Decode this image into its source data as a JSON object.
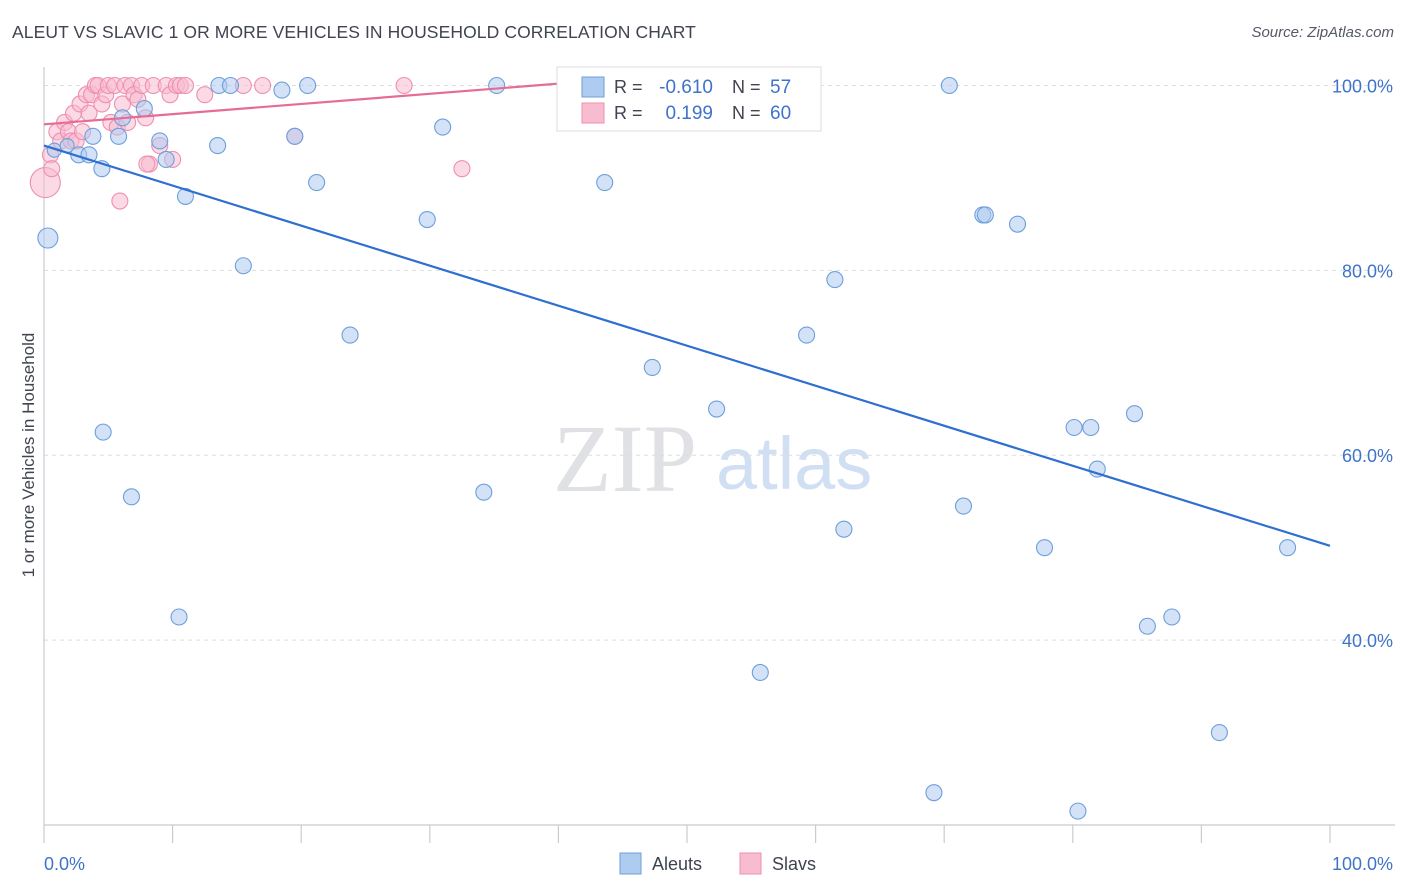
{
  "title": "ALEUT VS SLAVIC 1 OR MORE VEHICLES IN HOUSEHOLD CORRELATION CHART",
  "source": "Source: ZipAtlas.com",
  "watermark": {
    "zip": "ZIP",
    "atlas": "atlas"
  },
  "colors": {
    "aleut_fill": "#aecbf0",
    "aleut_stroke": "#6d9fdc",
    "aleut_line": "#2f6fd0",
    "slav_fill": "#f8bcd0",
    "slav_stroke": "#ee8fae",
    "slav_line": "#e56d95",
    "value_text": "#3f73c9",
    "grid": "#dcdde2",
    "label_text": "#3f4450"
  },
  "legend_box": {
    "rows": [
      {
        "r_label": "R =",
        "r_value": "-0.610",
        "n_label": "N =",
        "n_value": "57"
      },
      {
        "r_label": "R =",
        "r_value": "0.199",
        "n_label": "N =",
        "n_value": "60"
      }
    ]
  },
  "bottom_legend": [
    "Aleuts",
    "Slavs"
  ],
  "chart_data": {
    "type": "scatter",
    "title": "ALEUT VS SLAVIC 1 OR MORE VEHICLES IN HOUSEHOLD CORRELATION CHART",
    "xlabel": "",
    "ylabel": "1 or more Vehicles in Household",
    "xlim": [
      0,
      100
    ],
    "ylim": [
      20,
      102
    ],
    "x_tick_labels": [
      "0.0%",
      "100.0%"
    ],
    "y_ticks": [
      40,
      60,
      80,
      100
    ],
    "y_tick_labels": [
      "40.0%",
      "60.0%",
      "80.0%",
      "100.0%"
    ],
    "x_minor_ticks": [
      0,
      10,
      20,
      30,
      40,
      50,
      60,
      70,
      80,
      90,
      100
    ],
    "grid": true,
    "series": [
      {
        "name": "Aleuts",
        "r": -0.61,
        "n": 57,
        "trend": {
          "x": [
            0,
            100
          ],
          "y": [
            93.5,
            50.2
          ]
        },
        "points": [
          [
            0.3,
            83.5,
            10
          ],
          [
            0.8,
            93,
            7
          ],
          [
            1.8,
            93.5,
            7
          ],
          [
            2.7,
            92.5,
            8
          ],
          [
            3.5,
            92.5,
            8
          ],
          [
            3.8,
            94.5,
            8
          ],
          [
            4.5,
            91,
            8
          ],
          [
            4.6,
            62.5,
            8
          ],
          [
            5.8,
            94.5,
            8
          ],
          [
            6.1,
            96.5,
            8
          ],
          [
            6.8,
            55.5,
            8
          ],
          [
            7.8,
            97.5,
            8
          ],
          [
            9.0,
            94,
            8
          ],
          [
            9.5,
            92,
            8
          ],
          [
            10.5,
            42.5,
            8
          ],
          [
            11.0,
            88,
            8
          ],
          [
            13.5,
            93.5,
            8
          ],
          [
            13.6,
            100,
            8
          ],
          [
            14.5,
            100,
            8
          ],
          [
            15.5,
            80.5,
            8
          ],
          [
            18.5,
            99.5,
            8
          ],
          [
            19.5,
            94.5,
            8
          ],
          [
            20.5,
            100,
            8
          ],
          [
            21.2,
            89.5,
            8
          ],
          [
            23.8,
            73,
            8
          ],
          [
            29.8,
            85.5,
            8
          ],
          [
            31.0,
            95.5,
            8
          ],
          [
            34.2,
            56,
            8
          ],
          [
            35.2,
            100,
            8
          ],
          [
            43.6,
            89.5,
            8
          ],
          [
            47.3,
            69.5,
            8
          ],
          [
            52.3,
            65,
            8
          ],
          [
            55.7,
            36.5,
            8
          ],
          [
            59.3,
            73,
            8
          ],
          [
            61.5,
            79,
            8
          ],
          [
            62.2,
            52,
            8
          ],
          [
            69.2,
            23.5,
            8
          ],
          [
            70.4,
            100,
            8
          ],
          [
            71.5,
            54.5,
            8
          ],
          [
            73.0,
            86,
            8
          ],
          [
            73.2,
            86,
            8
          ],
          [
            75.7,
            85,
            8
          ],
          [
            77.8,
            50,
            8
          ],
          [
            80.1,
            63,
            8
          ],
          [
            80.4,
            21.5,
            8
          ],
          [
            81.4,
            63,
            8
          ],
          [
            81.9,
            58.5,
            8
          ],
          [
            84.8,
            64.5,
            8
          ],
          [
            85.8,
            41.5,
            8
          ],
          [
            87.7,
            42.5,
            8
          ],
          [
            91.4,
            30,
            8
          ],
          [
            96.7,
            50,
            8
          ]
        ]
      },
      {
        "name": "Slavs",
        "r": 0.199,
        "n": 60,
        "trend": {
          "x": [
            0,
            40
          ],
          "y": [
            95.8,
            100.2
          ]
        },
        "points": [
          [
            0.1,
            89.5,
            15
          ],
          [
            0.5,
            92.5,
            8
          ],
          [
            0.6,
            91,
            8
          ],
          [
            1.0,
            95,
            8
          ],
          [
            1.3,
            94,
            8
          ],
          [
            1.6,
            96,
            8
          ],
          [
            1.9,
            95,
            8
          ],
          [
            2.1,
            94,
            8
          ],
          [
            2.3,
            97,
            8
          ],
          [
            2.5,
            94,
            8
          ],
          [
            2.8,
            98,
            8
          ],
          [
            3.0,
            95,
            8
          ],
          [
            3.3,
            99,
            8
          ],
          [
            3.5,
            97,
            8
          ],
          [
            3.7,
            99,
            8
          ],
          [
            4.0,
            100,
            8
          ],
          [
            4.2,
            100,
            8
          ],
          [
            4.5,
            98,
            8
          ],
          [
            4.8,
            99,
            8
          ],
          [
            5.0,
            100,
            8
          ],
          [
            5.2,
            96,
            8
          ],
          [
            5.5,
            100,
            8
          ],
          [
            5.7,
            95.5,
            8
          ],
          [
            5.9,
            87.5,
            8
          ],
          [
            6.1,
            98,
            8
          ],
          [
            6.3,
            100,
            8
          ],
          [
            6.5,
            96,
            8
          ],
          [
            6.8,
            100,
            8
          ],
          [
            7.0,
            99,
            8
          ],
          [
            7.3,
            98.5,
            8
          ],
          [
            7.6,
            100,
            8
          ],
          [
            7.9,
            96.5,
            8
          ],
          [
            8.2,
            91.5,
            8
          ],
          [
            8.5,
            100,
            8
          ],
          [
            9.0,
            93.5,
            8
          ],
          [
            9.5,
            100,
            8
          ],
          [
            9.8,
            99,
            8
          ],
          [
            10.0,
            92,
            8
          ],
          [
            10.3,
            100,
            8
          ],
          [
            10.6,
            100,
            8
          ],
          [
            11.0,
            100,
            8
          ],
          [
            12.5,
            99,
            8
          ],
          [
            15.5,
            100,
            8
          ],
          [
            17.0,
            100,
            8
          ],
          [
            19.5,
            94.5,
            8
          ],
          [
            28.0,
            100,
            8
          ],
          [
            32.5,
            91,
            8
          ],
          [
            8.0,
            91.5,
            8
          ]
        ]
      }
    ]
  }
}
